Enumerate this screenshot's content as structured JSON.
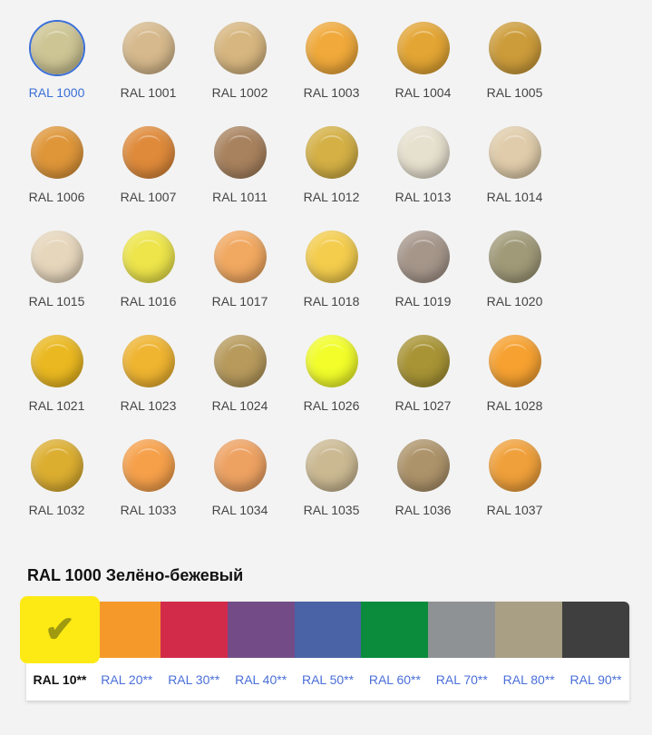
{
  "colors": [
    {
      "code": "RAL 1000",
      "hex": "#cdc594",
      "selected": true
    },
    {
      "code": "RAL 1001",
      "hex": "#d6b98c"
    },
    {
      "code": "RAL 1002",
      "hex": "#d7b67f"
    },
    {
      "code": "RAL 1003",
      "hex": "#f0a93a"
    },
    {
      "code": "RAL 1004",
      "hex": "#e3a533"
    },
    {
      "code": "RAL 1005",
      "hex": "#cd9c3a"
    },
    {
      "code": "RAL 1006",
      "hex": "#df9639"
    },
    {
      "code": "RAL 1007",
      "hex": "#df8a3a"
    },
    {
      "code": "RAL 1011",
      "hex": "#a8825e"
    },
    {
      "code": "RAL 1012",
      "hex": "#d4b045"
    },
    {
      "code": "RAL 1013",
      "hex": "#e6e0ce"
    },
    {
      "code": "RAL 1014",
      "hex": "#e0ccaa"
    },
    {
      "code": "RAL 1015",
      "hex": "#e6d6bc"
    },
    {
      "code": "RAL 1016",
      "hex": "#ede54a"
    },
    {
      "code": "RAL 1017",
      "hex": "#f1a860"
    },
    {
      "code": "RAL 1018",
      "hex": "#f4cd4d"
    },
    {
      "code": "RAL 1019",
      "hex": "#a6968a"
    },
    {
      "code": "RAL 1020",
      "hex": "#a09a78"
    },
    {
      "code": "RAL 1021",
      "hex": "#eab820"
    },
    {
      "code": "RAL 1023",
      "hex": "#efb430"
    },
    {
      "code": "RAL 1024",
      "hex": "#b79a5c"
    },
    {
      "code": "RAL 1026",
      "hex": "#f2fd2a"
    },
    {
      "code": "RAL 1027",
      "hex": "#a89435"
    },
    {
      "code": "RAL 1028",
      "hex": "#f6a130"
    },
    {
      "code": "RAL 1032",
      "hex": "#dcae30"
    },
    {
      "code": "RAL 1033",
      "hex": "#f6a04a"
    },
    {
      "code": "RAL 1034",
      "hex": "#eea262"
    },
    {
      "code": "RAL 1035",
      "hex": "#cbb992"
    },
    {
      "code": "RAL 1036",
      "hex": "#ad936a"
    },
    {
      "code": "RAL 1037",
      "hex": "#f0a03a"
    }
  ],
  "selected_title": "RAL 1000 Зелёно-бежевый",
  "groups": [
    {
      "label": "RAL 10**",
      "hex": "#fdea14",
      "selected": true,
      "icon": "check-icon"
    },
    {
      "label": "RAL 20**",
      "hex": "#f59a2a"
    },
    {
      "label": "RAL 30**",
      "hex": "#d22b4a"
    },
    {
      "label": "RAL 40**",
      "hex": "#734c87"
    },
    {
      "label": "RAL 50**",
      "hex": "#4a63a6"
    },
    {
      "label": "RAL 60**",
      "hex": "#0a8c3c"
    },
    {
      "label": "RAL 70**",
      "hex": "#8f9294"
    },
    {
      "label": "RAL 80**",
      "hex": "#a89f84"
    },
    {
      "label": "RAL 90**",
      "hex": "#3f3f3f"
    }
  ]
}
